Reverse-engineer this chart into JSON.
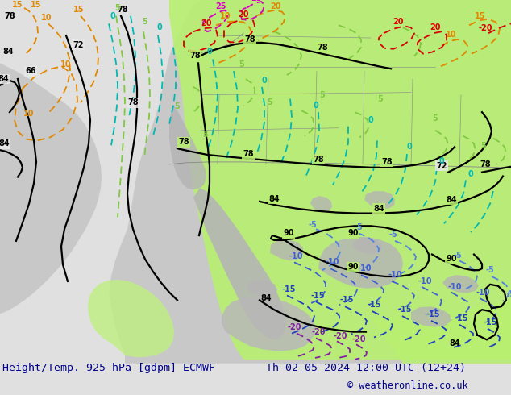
{
  "title_left": "Height/Temp. 925 hPa [gdpm] ECMWF",
  "title_right": "Th 02-05-2024 12:00 UTC (12+24)",
  "copyright": "© weatheronline.co.uk",
  "bg_color": "#e0e0e0",
  "ocean_color": "#e8e8e8",
  "land_gray": "#c8c8c8",
  "land_gray2": "#b8b8b8",
  "green_light": "#b8f070",
  "green_mid": "#a8e060",
  "title_color": "#00008b",
  "copyright_color": "#00008b",
  "title_fs": 9.5,
  "copy_fs": 8.5,
  "black_lw": 1.6,
  "col_lw": 1.3,
  "label_fs": 7
}
